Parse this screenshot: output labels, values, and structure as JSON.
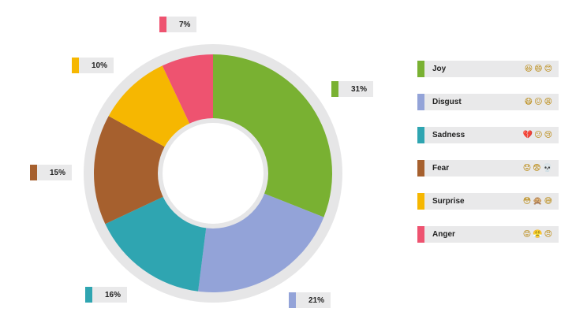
{
  "chart_data": {
    "type": "pie",
    "style": "donut",
    "slices": [
      {
        "name": "Joy",
        "value": 31,
        "label": "31%",
        "color": "#79b132",
        "emojis": "😃😄😊"
      },
      {
        "name": "Disgust",
        "value": 21,
        "label": "21%",
        "color": "#93a3d8",
        "emojis": "😷😖😩"
      },
      {
        "name": "Sadness",
        "value": 16,
        "label": "16%",
        "color": "#2fa5b1",
        "emojis": "💔😕😢"
      },
      {
        "name": "Fear",
        "value": 15,
        "label": "15%",
        "color": "#a6602e",
        "emojis": "😟😨💀"
      },
      {
        "name": "Surprise",
        "value": 10,
        "label": "10%",
        "color": "#f6b701",
        "emojis": "😳🙊😅"
      },
      {
        "name": "Anger",
        "value": 7,
        "label": "7%",
        "color": "#ee5370",
        "emojis": "😡😤😠"
      }
    ],
    "start_angle_deg": 0,
    "direction": "clockwise",
    "legend_position": "right"
  },
  "colors": {
    "ring_outline": "#e6e6e7",
    "label_bg": "#e9e9ea"
  }
}
